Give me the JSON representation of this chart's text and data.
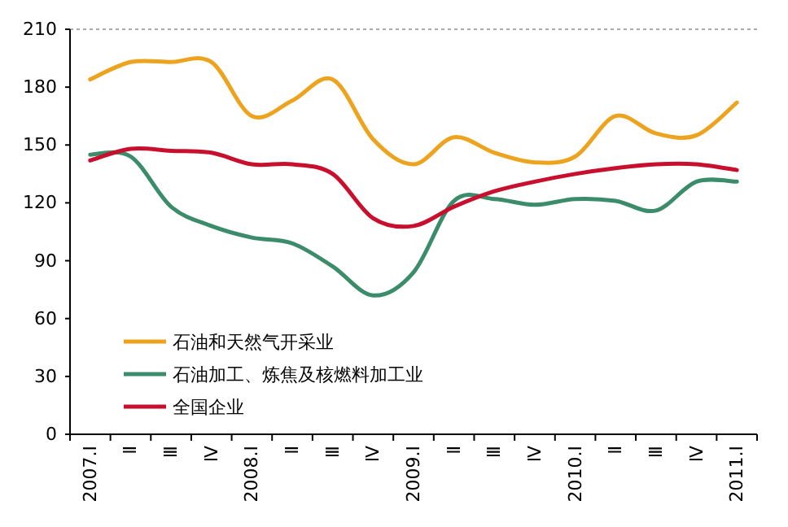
{
  "chart_data": {
    "type": "line",
    "categories": [
      "2007.Ⅰ",
      "Ⅱ",
      "Ⅲ",
      "Ⅳ",
      "2008.Ⅰ",
      "Ⅱ",
      "Ⅲ",
      "Ⅳ",
      "2009.Ⅰ",
      "Ⅱ",
      "Ⅲ",
      "Ⅳ",
      "2010.Ⅰ",
      "Ⅱ",
      "Ⅲ",
      "Ⅳ",
      "2011.Ⅰ"
    ],
    "series": [
      {
        "name": "石油和天然气开采业",
        "color": "#eda31e",
        "values": [
          184,
          193,
          193,
          193,
          165,
          173,
          184,
          153,
          140,
          154,
          146,
          141,
          144,
          165,
          156,
          155,
          172
        ]
      },
      {
        "name": "石油加工、炼焦及核燃料加工业",
        "color": "#3a8c6a",
        "values": [
          145,
          144,
          118,
          108,
          102,
          99,
          87,
          72,
          84,
          121,
          122,
          119,
          122,
          121,
          116,
          131,
          131
        ]
      },
      {
        "name": "全国企业",
        "color": "#c8102e",
        "values": [
          142,
          148,
          147,
          146,
          140,
          140,
          135,
          112,
          108,
          118,
          126,
          131,
          135,
          138,
          140,
          140,
          137
        ]
      }
    ],
    "ylim": [
      0,
      210
    ],
    "yticks": [
      0,
      30,
      60,
      90,
      120,
      150,
      180,
      210
    ],
    "grid": false,
    "legend": "bottom left",
    "marker": "none",
    "line_style": "solid"
  }
}
